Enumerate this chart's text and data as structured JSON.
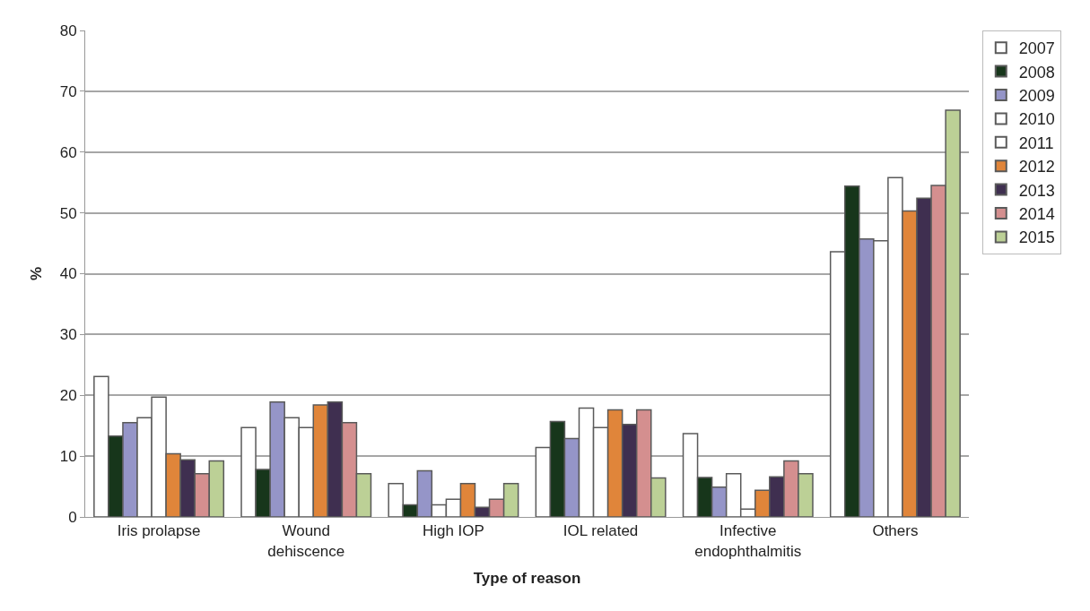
{
  "chart_data": {
    "type": "bar",
    "xlabel": "Type of reason",
    "ylabel": "%",
    "categories": [
      "Iris prolapse",
      "Wound dehiscence",
      "High IOP",
      "IOL related",
      "Infective endophthalmitis",
      "Others"
    ],
    "series": [
      {
        "name": "2007",
        "color": "#ffffff",
        "values": [
          23.1,
          14.7,
          5.5,
          11.4,
          13.7,
          43.6
        ]
      },
      {
        "name": "2008",
        "color": "#17361b",
        "values": [
          13.3,
          7.8,
          2.0,
          15.7,
          6.5,
          54.4
        ]
      },
      {
        "name": "2009",
        "color": "#9595c8",
        "values": [
          15.5,
          18.9,
          7.6,
          12.9,
          4.9,
          45.7
        ]
      },
      {
        "name": "2010",
        "color": "#ffffff",
        "values": [
          16.3,
          16.3,
          2.0,
          17.9,
          7.1,
          45.4
        ]
      },
      {
        "name": "2011",
        "color": "#ffffff",
        "values": [
          19.7,
          14.7,
          2.9,
          14.7,
          1.3,
          55.8
        ]
      },
      {
        "name": "2012",
        "color": "#e0853a",
        "values": [
          10.4,
          18.4,
          5.5,
          17.6,
          4.4,
          50.3
        ]
      },
      {
        "name": "2013",
        "color": "#3f2f50",
        "values": [
          9.4,
          18.9,
          1.6,
          15.2,
          6.6,
          52.4
        ]
      },
      {
        "name": "2014",
        "color": "#d48f8f",
        "values": [
          7.1,
          15.5,
          2.9,
          17.6,
          9.2,
          54.5
        ]
      },
      {
        "name": "2015",
        "color": "#bcd096",
        "values": [
          9.2,
          7.1,
          5.5,
          6.4,
          7.1,
          66.9
        ]
      }
    ],
    "ylim": [
      0,
      80
    ],
    "yticks": [
      0,
      10,
      20,
      30,
      40,
      50,
      60,
      70,
      80
    ],
    "grid": "y",
    "legend": "top right"
  }
}
